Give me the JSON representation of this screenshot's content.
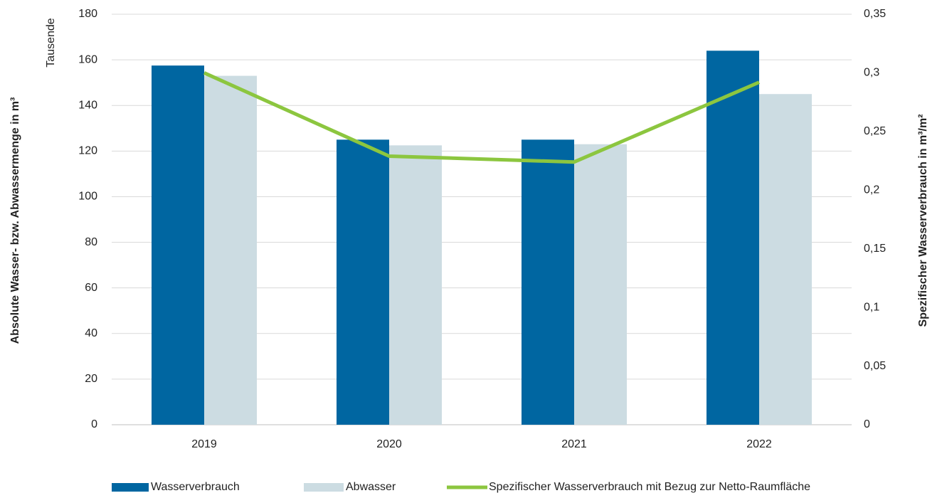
{
  "chart_data": {
    "type": "bar",
    "y_label": "Absolute Wasser- bzw. Abwassermenge in m³",
    "y_unit_label": "Tausende",
    "y2_label": "Spezifischer Wasserverbrauch in m³/m²",
    "categories": [
      "2019",
      "2020",
      "2021",
      "2022"
    ],
    "series": [
      {
        "name": "Wasserverbrauch",
        "type": "bar",
        "color": "#0066a1",
        "values": [
          157.5,
          125,
          125,
          164
        ]
      },
      {
        "name": "Abwasser",
        "type": "bar",
        "color": "#ccdce2",
        "values": [
          153,
          122.5,
          123,
          145
        ]
      },
      {
        "name": "Spezifischer Wasserverbrauch mit Bezug zur Netto-Raumfläche",
        "type": "line",
        "axis": "y2",
        "color": "#8cc63f",
        "values": [
          0.3,
          0.229,
          0.224,
          0.292
        ]
      }
    ],
    "ylim": [
      0,
      180
    ],
    "yticks": [
      0,
      20,
      40,
      60,
      80,
      100,
      120,
      140,
      160,
      180
    ],
    "y2lim": [
      0,
      0.35
    ],
    "y2ticks": [
      0,
      {
        "value": 0.05,
        "label": "0,05"
      },
      {
        "value": 0.1,
        "label": "0,1"
      },
      {
        "value": 0.15,
        "label": "0,15"
      },
      {
        "value": 0.2,
        "label": "0,2"
      },
      {
        "value": 0.25,
        "label": "0,25"
      },
      {
        "value": 0.3,
        "label": "0,3"
      },
      {
        "value": 0.35,
        "label": "0,35"
      }
    ],
    "grid": true,
    "legend": "bottom"
  }
}
